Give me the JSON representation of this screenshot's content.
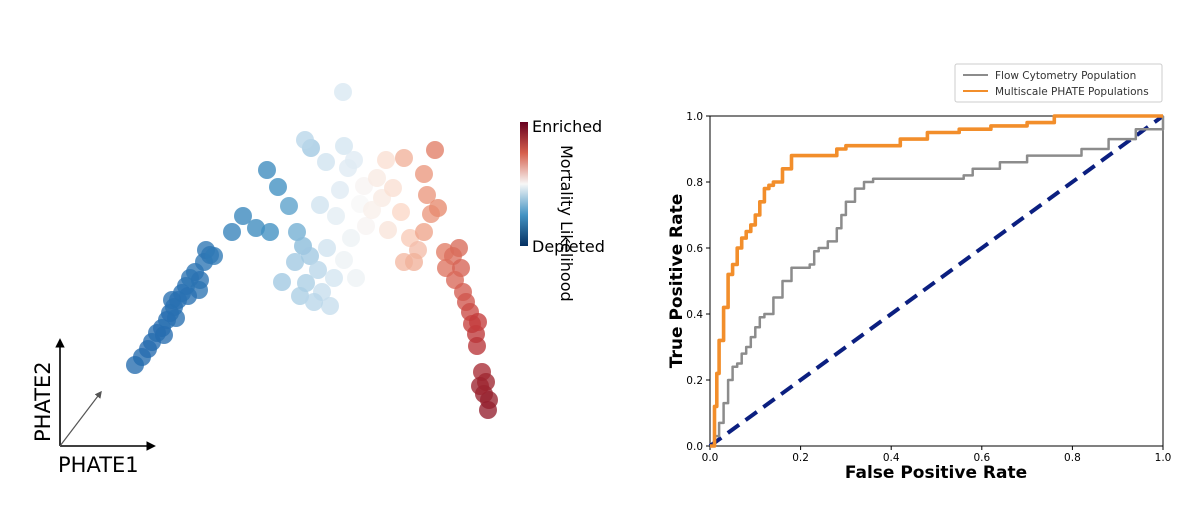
{
  "chart_data": [
    {
      "type": "scatter",
      "xlabel": "PHATE1",
      "ylabel": "PHATE2",
      "colorbar": {
        "label": "Mortality Likelihood",
        "top_label": "Enriched",
        "bottom_label": "Depleted",
        "colors": [
          "#67001f",
          "#d6604d",
          "#f7f7f7",
          "#4393c3",
          "#053061"
        ]
      },
      "points_note_color_scale": "c ranges from -1 (Depleted) to 1 (Enriched)",
      "points": [
        {
          "x": 135,
          "y": 365,
          "c": -0.95
        },
        {
          "x": 142,
          "y": 357,
          "c": -0.95
        },
        {
          "x": 148,
          "y": 349,
          "c": -0.93
        },
        {
          "x": 152,
          "y": 342,
          "c": -0.94
        },
        {
          "x": 157,
          "y": 333,
          "c": -0.92
        },
        {
          "x": 162,
          "y": 328,
          "c": -0.93
        },
        {
          "x": 167,
          "y": 320,
          "c": -0.9
        },
        {
          "x": 170,
          "y": 313,
          "c": -0.92
        },
        {
          "x": 174,
          "y": 307,
          "c": -0.9
        },
        {
          "x": 178,
          "y": 300,
          "c": -0.9
        },
        {
          "x": 182,
          "y": 293,
          "c": -0.88
        },
        {
          "x": 186,
          "y": 286,
          "c": -0.88
        },
        {
          "x": 190,
          "y": 278,
          "c": -0.86
        },
        {
          "x": 195,
          "y": 272,
          "c": -0.85
        },
        {
          "x": 200,
          "y": 280,
          "c": -0.87
        },
        {
          "x": 204,
          "y": 262,
          "c": -0.84
        },
        {
          "x": 210,
          "y": 255,
          "c": -0.82
        },
        {
          "x": 199,
          "y": 290,
          "c": -0.86
        },
        {
          "x": 176,
          "y": 318,
          "c": -0.9
        },
        {
          "x": 164,
          "y": 335,
          "c": -0.92
        },
        {
          "x": 188,
          "y": 296,
          "c": -0.88
        },
        {
          "x": 172,
          "y": 300,
          "c": -0.9
        },
        {
          "x": 206,
          "y": 250,
          "c": -0.82
        },
        {
          "x": 214,
          "y": 256,
          "c": -0.78
        },
        {
          "x": 232,
          "y": 232,
          "c": -0.7
        },
        {
          "x": 243,
          "y": 216,
          "c": -0.65
        },
        {
          "x": 256,
          "y": 228,
          "c": -0.6
        },
        {
          "x": 270,
          "y": 232,
          "c": -0.55
        },
        {
          "x": 267,
          "y": 170,
          "c": -0.6
        },
        {
          "x": 278,
          "y": 187,
          "c": -0.55
        },
        {
          "x": 289,
          "y": 206,
          "c": -0.45
        },
        {
          "x": 297,
          "y": 232,
          "c": -0.4
        },
        {
          "x": 303,
          "y": 246,
          "c": -0.35
        },
        {
          "x": 295,
          "y": 262,
          "c": -0.3
        },
        {
          "x": 310,
          "y": 256,
          "c": -0.3
        },
        {
          "x": 282,
          "y": 282,
          "c": -0.3
        },
        {
          "x": 306,
          "y": 283,
          "c": -0.28
        },
        {
          "x": 300,
          "y": 296,
          "c": -0.28
        },
        {
          "x": 318,
          "y": 270,
          "c": -0.25
        },
        {
          "x": 322,
          "y": 292,
          "c": -0.22
        },
        {
          "x": 330,
          "y": 306,
          "c": -0.22
        },
        {
          "x": 314,
          "y": 302,
          "c": -0.25
        },
        {
          "x": 334,
          "y": 278,
          "c": -0.18
        },
        {
          "x": 327,
          "y": 248,
          "c": -0.2
        },
        {
          "x": 320,
          "y": 205,
          "c": -0.2
        },
        {
          "x": 311,
          "y": 148,
          "c": -0.3
        },
        {
          "x": 305,
          "y": 140,
          "c": -0.25
        },
        {
          "x": 326,
          "y": 162,
          "c": -0.2
        },
        {
          "x": 344,
          "y": 146,
          "c": -0.18
        },
        {
          "x": 348,
          "y": 168,
          "c": -0.12
        },
        {
          "x": 340,
          "y": 190,
          "c": -0.12
        },
        {
          "x": 354,
          "y": 160,
          "c": -0.12
        },
        {
          "x": 343,
          "y": 92,
          "c": -0.15
        },
        {
          "x": 336,
          "y": 216,
          "c": -0.1
        },
        {
          "x": 351,
          "y": 238,
          "c": -0.05
        },
        {
          "x": 344,
          "y": 260,
          "c": -0.05
        },
        {
          "x": 364,
          "y": 186,
          "c": 0.02
        },
        {
          "x": 360,
          "y": 204,
          "c": 0.0
        },
        {
          "x": 366,
          "y": 226,
          "c": 0.02
        },
        {
          "x": 356,
          "y": 278,
          "c": -0.05
        },
        {
          "x": 377,
          "y": 178,
          "c": 0.08
        },
        {
          "x": 386,
          "y": 160,
          "c": 0.15
        },
        {
          "x": 382,
          "y": 198,
          "c": 0.08
        },
        {
          "x": 372,
          "y": 210,
          "c": 0.05
        },
        {
          "x": 388,
          "y": 230,
          "c": 0.12
        },
        {
          "x": 393,
          "y": 188,
          "c": 0.15
        },
        {
          "x": 401,
          "y": 212,
          "c": 0.2
        },
        {
          "x": 404,
          "y": 158,
          "c": 0.35
        },
        {
          "x": 410,
          "y": 238,
          "c": 0.25
        },
        {
          "x": 418,
          "y": 250,
          "c": 0.3
        },
        {
          "x": 404,
          "y": 262,
          "c": 0.32
        },
        {
          "x": 414,
          "y": 262,
          "c": 0.35
        },
        {
          "x": 424,
          "y": 174,
          "c": 0.45
        },
        {
          "x": 427,
          "y": 195,
          "c": 0.45
        },
        {
          "x": 435,
          "y": 150,
          "c": 0.55
        },
        {
          "x": 431,
          "y": 214,
          "c": 0.45
        },
        {
          "x": 438,
          "y": 208,
          "c": 0.5
        },
        {
          "x": 424,
          "y": 232,
          "c": 0.4
        },
        {
          "x": 445,
          "y": 252,
          "c": 0.55
        },
        {
          "x": 446,
          "y": 268,
          "c": 0.58
        },
        {
          "x": 453,
          "y": 256,
          "c": 0.6
        },
        {
          "x": 459,
          "y": 248,
          "c": 0.62
        },
        {
          "x": 461,
          "y": 268,
          "c": 0.65
        },
        {
          "x": 455,
          "y": 280,
          "c": 0.63
        },
        {
          "x": 463,
          "y": 292,
          "c": 0.67
        },
        {
          "x": 466,
          "y": 302,
          "c": 0.7
        },
        {
          "x": 470,
          "y": 312,
          "c": 0.74
        },
        {
          "x": 472,
          "y": 324,
          "c": 0.78
        },
        {
          "x": 476,
          "y": 334,
          "c": 0.82
        },
        {
          "x": 477,
          "y": 346,
          "c": 0.84
        },
        {
          "x": 478,
          "y": 322,
          "c": 0.8
        },
        {
          "x": 482,
          "y": 372,
          "c": 0.9
        },
        {
          "x": 486,
          "y": 382,
          "c": 0.93
        },
        {
          "x": 484,
          "y": 394,
          "c": 0.95
        },
        {
          "x": 489,
          "y": 400,
          "c": 0.96
        },
        {
          "x": 488,
          "y": 410,
          "c": 0.97
        },
        {
          "x": 480,
          "y": 386,
          "c": 0.94
        }
      ]
    },
    {
      "type": "line",
      "xlabel": "False Positive Rate",
      "ylabel": "True Positive Rate",
      "xlim": [
        0.0,
        1.0
      ],
      "ylim": [
        0.0,
        1.0
      ],
      "xticks": [
        "0.0",
        "0.2",
        "0.4",
        "0.6",
        "0.8",
        "1.0"
      ],
      "yticks": [
        "0.0",
        "0.2",
        "0.4",
        "0.6",
        "0.8",
        "1.0"
      ],
      "legend_position": "top-right",
      "series": [
        {
          "name": "Flow Cytometry Population",
          "color": "#8c8c8c",
          "x": [
            0.0,
            0.01,
            0.02,
            0.03,
            0.04,
            0.05,
            0.06,
            0.07,
            0.08,
            0.09,
            0.1,
            0.11,
            0.12,
            0.13,
            0.14,
            0.16,
            0.18,
            0.2,
            0.22,
            0.23,
            0.24,
            0.25,
            0.26,
            0.27,
            0.28,
            0.29,
            0.3,
            0.32,
            0.34,
            0.36,
            0.4,
            0.46,
            0.5,
            0.54,
            0.56,
            0.58,
            0.62,
            0.64,
            0.7,
            0.76,
            0.82,
            0.88,
            0.94,
            1.0
          ],
          "y": [
            0.0,
            0.03,
            0.07,
            0.13,
            0.2,
            0.24,
            0.25,
            0.28,
            0.3,
            0.33,
            0.36,
            0.39,
            0.4,
            0.4,
            0.45,
            0.5,
            0.54,
            0.54,
            0.55,
            0.59,
            0.6,
            0.6,
            0.62,
            0.62,
            0.66,
            0.7,
            0.74,
            0.78,
            0.8,
            0.81,
            0.81,
            0.81,
            0.81,
            0.81,
            0.82,
            0.84,
            0.84,
            0.86,
            0.88,
            0.88,
            0.9,
            0.93,
            0.96,
            1.0
          ]
        },
        {
          "name": "Multiscale PHATE Populations",
          "color": "#f28e2b",
          "x": [
            0.0,
            0.01,
            0.015,
            0.02,
            0.03,
            0.04,
            0.05,
            0.06,
            0.07,
            0.08,
            0.09,
            0.1,
            0.11,
            0.12,
            0.13,
            0.14,
            0.16,
            0.18,
            0.22,
            0.25,
            0.28,
            0.3,
            0.36,
            0.42,
            0.48,
            0.55,
            0.62,
            0.7,
            0.76,
            0.85,
            1.0
          ],
          "y": [
            0.0,
            0.12,
            0.22,
            0.32,
            0.42,
            0.52,
            0.55,
            0.6,
            0.63,
            0.65,
            0.67,
            0.7,
            0.74,
            0.78,
            0.79,
            0.8,
            0.84,
            0.88,
            0.88,
            0.88,
            0.9,
            0.91,
            0.91,
            0.93,
            0.95,
            0.96,
            0.97,
            0.98,
            1.0,
            1.0,
            1.0
          ]
        },
        {
          "name": "",
          "color": "#0b1f80",
          "dashed": true,
          "x": [
            0.0,
            1.0
          ],
          "y": [
            0.0,
            1.0
          ]
        }
      ]
    }
  ]
}
